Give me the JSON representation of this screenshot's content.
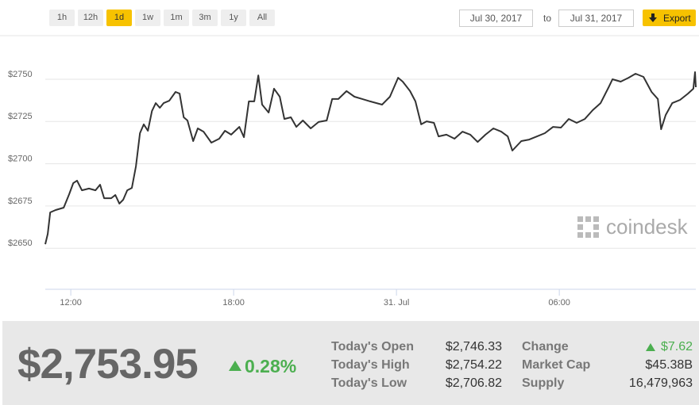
{
  "toolbar": {
    "ranges": [
      "1h",
      "12h",
      "1d",
      "1w",
      "1m",
      "3m",
      "1y",
      "All"
    ],
    "active_range": 2,
    "date_from": "Jul 30, 2017",
    "date_to_label": "to",
    "date_to": "Jul 31, 2017",
    "export": "Export"
  },
  "watermark": "coindesk",
  "chart_data": {
    "type": "line",
    "color": "#333333",
    "x": [
      11.06,
      11.15,
      11.24,
      11.44,
      11.74,
      11.94,
      12.09,
      12.23,
      12.41,
      12.67,
      12.91,
      13.08,
      13.23,
      13.49,
      13.64,
      13.79,
      13.93,
      14.08,
      14.25,
      14.4,
      14.55,
      14.69,
      14.84,
      14.99,
      15.13,
      15.28,
      15.42,
      15.63,
      15.86,
      16.01,
      16.16,
      16.3,
      16.51,
      16.68,
      16.89,
      17.18,
      17.47,
      17.68,
      17.91,
      18.21,
      18.38,
      18.56,
      18.76,
      18.91,
      19.05,
      19.29,
      19.49,
      19.7,
      19.87,
      20.11,
      20.31,
      20.55,
      20.84,
      21.13,
      21.43,
      21.63,
      21.86,
      22.16,
      22.45,
      22.74,
      23.03,
      23.47,
      23.76,
      24.06,
      24.23,
      24.5,
      24.7,
      24.91,
      25.11,
      25.38,
      25.55,
      25.84,
      26.14,
      26.43,
      26.72,
      26.99,
      27.28,
      27.57,
      27.86,
      28.1,
      28.27,
      28.6,
      28.89,
      29.18,
      29.47,
      29.77,
      30.06,
      30.35,
      30.64,
      30.94,
      31.23,
      31.52,
      31.82,
      31.96,
      32.26,
      32.55,
      32.81,
      33.1,
      33.4,
      33.63,
      33.75,
      33.92,
      34.16,
      34.45,
      34.74,
      34.94,
      35.0,
      35.03
    ],
    "values": [
      2652.4,
      2658.5,
      2671.2,
      2672.6,
      2674.0,
      2682.0,
      2688.5,
      2690.0,
      2684.3,
      2685.3,
      2684.3,
      2687.6,
      2679.6,
      2679.6,
      2681.5,
      2676.4,
      2678.7,
      2684.3,
      2685.7,
      2698.4,
      2718.1,
      2723.3,
      2719.5,
      2731.2,
      2735.9,
      2733.1,
      2735.9,
      2737.3,
      2742.5,
      2741.5,
      2727.5,
      2725.6,
      2713.4,
      2720.9,
      2719.0,
      2712.5,
      2714.8,
      2719.5,
      2717.2,
      2721.8,
      2715.7,
      2736.9,
      2736.9,
      2752.3,
      2735.0,
      2730.3,
      2744.4,
      2739.7,
      2726.5,
      2727.5,
      2721.8,
      2725.6,
      2720.9,
      2724.7,
      2725.6,
      2738.3,
      2738.3,
      2743.0,
      2739.7,
      2738.3,
      2736.9,
      2735.0,
      2739.7,
      2750.9,
      2748.6,
      2743.0,
      2736.9,
      2723.3,
      2725.1,
      2724.2,
      2716.2,
      2717.2,
      2714.8,
      2719.0,
      2717.2,
      2712.9,
      2717.2,
      2720.9,
      2719.0,
      2716.2,
      2707.8,
      2713.4,
      2714.3,
      2716.2,
      2718.1,
      2721.8,
      2721.4,
      2726.5,
      2724.2,
      2726.5,
      2731.7,
      2735.9,
      2745.3,
      2750.0,
      2748.6,
      2750.9,
      2753.3,
      2751.4,
      2742.5,
      2738.3,
      2720.4,
      2728.9,
      2735.9,
      2737.8,
      2741.5,
      2744.4,
      2754.2,
      2745.3
    ],
    "xlim": [
      11.06,
      35.03
    ],
    "xticks": [
      {
        "value": 12,
        "label": "12:00"
      },
      {
        "value": 18,
        "label": "18:00"
      },
      {
        "value": 24,
        "label": "31. Jul"
      },
      {
        "value": 30,
        "label": "06:00"
      }
    ],
    "ylim": [
      2625.7,
      2775.8
    ],
    "yticks": [
      {
        "value": 2650,
        "label": "$2650"
      },
      {
        "value": 2675,
        "label": "$2675"
      },
      {
        "value": 2700,
        "label": "$2700"
      },
      {
        "value": 2725,
        "label": "$2725"
      },
      {
        "value": 2750,
        "label": "$2750"
      }
    ],
    "grid": true
  },
  "stats": {
    "price": "$2,753.95",
    "change_percent": "0.28%",
    "left": [
      {
        "label": "Today's Open",
        "value": "$2,746.33"
      },
      {
        "label": "Today's High",
        "value": "$2,754.22"
      },
      {
        "label": "Today's Low",
        "value": "$2,706.82"
      }
    ],
    "right": [
      {
        "label": "Change",
        "value": "$7.62"
      },
      {
        "label": "Market Cap",
        "value": "$45.38B"
      },
      {
        "label": "Supply",
        "value": "16,479,963"
      }
    ]
  }
}
